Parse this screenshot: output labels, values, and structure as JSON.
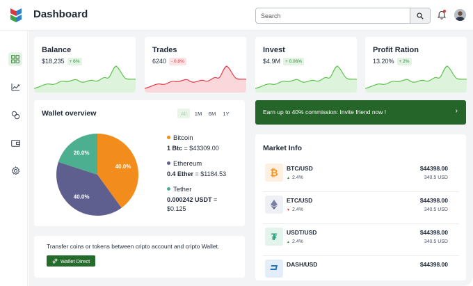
{
  "header": {
    "title": "Dashboard",
    "search_placeholder": "Search"
  },
  "sidebar": {
    "items": [
      {
        "icon": "dashboard-icon",
        "active": true
      },
      {
        "icon": "chart-trend-icon",
        "active": false
      },
      {
        "icon": "exchange-icon",
        "active": false
      },
      {
        "icon": "wallet-icon",
        "active": false
      },
      {
        "icon": "gear-icon",
        "active": false
      }
    ]
  },
  "stats": [
    {
      "title": "Balance",
      "value": "$18,235",
      "change": "+ 6%",
      "trend": "up",
      "color": "#5cc24a"
    },
    {
      "title": "Trades",
      "value": "6240",
      "change": "- 0.8%",
      "trend": "down",
      "color": "#e5394a"
    },
    {
      "title": "Invest",
      "value": "$4.9M",
      "change": "+ 0.06%",
      "trend": "up",
      "color": "#5cc24a"
    },
    {
      "title": "Profit Ration",
      "value": "13.20%",
      "change": "+ 2%",
      "trend": "up",
      "color": "#5cc24a"
    }
  ],
  "wallet": {
    "title": "Wallet overview",
    "tabs": [
      "All",
      "1M",
      "6M",
      "1Y"
    ],
    "active_tab": "All",
    "legend": [
      {
        "name": "Bitcoin",
        "amount": "1 Btc",
        "value": " = $43309.00",
        "color": "#f28c1c"
      },
      {
        "name": "Ethereum",
        "amount": "0.4 Ether",
        "value": " = $1184.53",
        "color": "#5e5f8e"
      },
      {
        "name": "Tether",
        "amount": "0.000242 USDT",
        "value": " = $0.125",
        "color": "#4caf8f"
      }
    ]
  },
  "chart_data": {
    "type": "pie",
    "categories": [
      "Bitcoin",
      "Ethereum",
      "Tether"
    ],
    "values": [
      40.0,
      40.0,
      20.0
    ],
    "labels": [
      "40.0%",
      "40.0%",
      "20.0%"
    ],
    "colors": [
      "#f28c1c",
      "#5e5f8e",
      "#4caf8f"
    ]
  },
  "transfer": {
    "text": "Transfer coins or tokens between cripto account and cripto Wallet.",
    "button": "Wallet Direct"
  },
  "promo": {
    "text": "Earn up to 40% commission: Invite friend now !",
    "arrow": "›"
  },
  "market": {
    "title": "Market Info",
    "rows": [
      {
        "pair": "BTC/USD",
        "change": "2.4%",
        "trend": "up",
        "price": "$44398.00",
        "volume": "340.5 USD",
        "icon": "bitcoin-icon",
        "glyph": "₿",
        "icon_color": "#f7931a",
        "icon_bg": "#fdf0e0"
      },
      {
        "pair": "ETC/USD",
        "change": "2.4%",
        "trend": "down",
        "price": "$44398.00",
        "volume": "340.5 USD",
        "icon": "ethereum-icon",
        "glyph": "◆",
        "icon_color": "#7b7fa6",
        "icon_bg": "#eef0f5"
      },
      {
        "pair": "USDT/USD",
        "change": "2.4%",
        "trend": "up",
        "price": "$44398.00",
        "volume": "340.5 USD",
        "icon": "tether-icon",
        "glyph": "₮",
        "icon_color": "#26a17b",
        "icon_bg": "#e2f4ec"
      },
      {
        "pair": "DASH/USD",
        "change": "",
        "trend": "",
        "price": "$44398.00",
        "volume": "",
        "icon": "dash-icon",
        "glyph": "D",
        "icon_color": "#1c75bc",
        "icon_bg": "#e3eefa"
      }
    ]
  }
}
